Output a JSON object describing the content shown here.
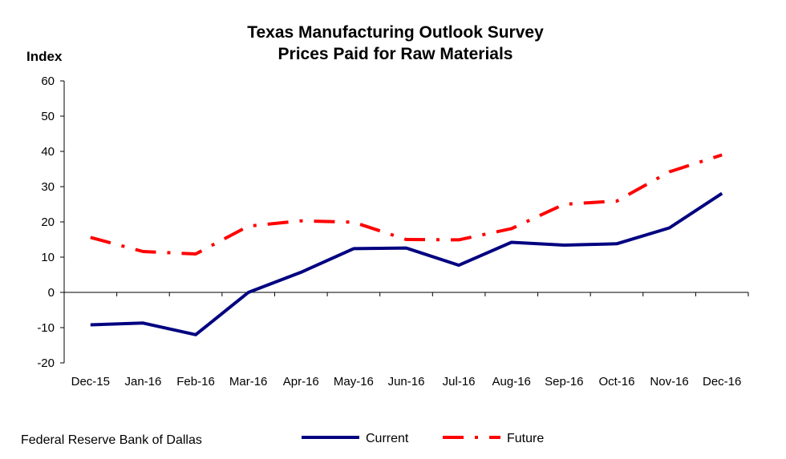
{
  "chart_data": {
    "type": "line",
    "title": "Texas Manufacturing Outlook Survey",
    "subtitle": "Prices Paid for Raw Materials",
    "ylabel": "Index",
    "xlabel": "",
    "categories": [
      "Dec-15",
      "Jan-16",
      "Feb-16",
      "Mar-16",
      "Apr-16",
      "May-16",
      "Jun-16",
      "Jul-16",
      "Aug-16",
      "Sep-16",
      "Oct-16",
      "Nov-16",
      "Dec-16"
    ],
    "ylim": [
      -20,
      60
    ],
    "yticks": [
      -20,
      -10,
      0,
      10,
      20,
      30,
      40,
      50,
      60
    ],
    "grid": false,
    "legend": "bottom",
    "series": [
      {
        "name": "Current",
        "color": "#000080",
        "style": "solid",
        "values": [
          -9.2,
          -8.7,
          -12.0,
          0.0,
          5.7,
          12.4,
          12.6,
          7.7,
          14.2,
          13.4,
          13.8,
          18.3,
          28.1
        ]
      },
      {
        "name": "Future",
        "color": "#ff0000",
        "style": "dash-dot",
        "values": [
          15.6,
          11.6,
          10.9,
          18.8,
          20.3,
          19.9,
          15.0,
          14.9,
          18.1,
          25.0,
          25.9,
          34.2,
          39.0
        ]
      }
    ]
  },
  "source": "Federal Reserve Bank of Dallas"
}
